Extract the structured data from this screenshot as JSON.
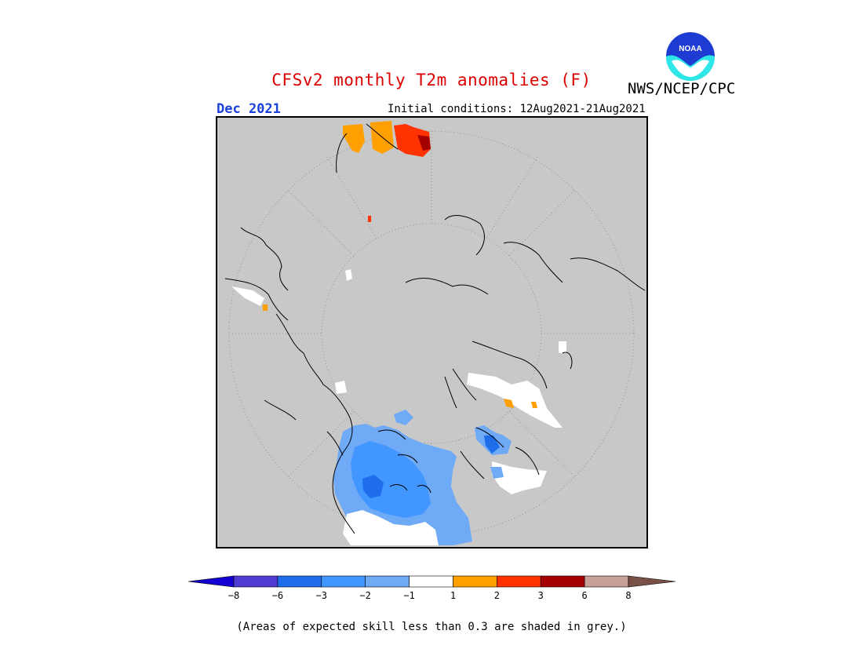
{
  "header": {
    "title": "CFSv2 monthly T2m anomalies (F)",
    "title_color": "#dd0000",
    "agency": "NWS/NCEP/CPC",
    "logo_text": "NOAA",
    "month": "Dec 2021",
    "month_color": "#1a3fdb",
    "initial_conditions": "Initial conditions: 12Aug2021-21Aug2021"
  },
  "map": {
    "projection": "north-polar-stereographic",
    "background_color": "#c8c8c8",
    "skill_mask_color": "#c8c8c8",
    "anomaly_regions": [
      {
        "region": "North America interior (Canada / northern US)",
        "category": "-3 to -2",
        "color": "#4196ff"
      },
      {
        "region": "North America interior (Canada / northern US)",
        "category": "-2 to -1",
        "color": "#6eaaf5"
      },
      {
        "region": "Central Canada core",
        "category": "-6 to -3",
        "color": "#1e6eeb"
      },
      {
        "region": "Southern Canada / northern US border",
        "category": "-1 to 1",
        "color": "#ffffff"
      },
      {
        "region": "Eastern Greenland / Baffin",
        "category": "-3 to -2",
        "color": "#4196ff"
      },
      {
        "region": "Scandinavia / Northern Europe",
        "category": "-1 to 1",
        "color": "#ffffff"
      },
      {
        "region": "Scandinavia coast",
        "category": "1 to 2",
        "color": "#ffa000"
      },
      {
        "region": "Southeast Asia (map top)",
        "category": "1 to 2",
        "color": "#ffa000"
      },
      {
        "region": "Southeast Asia (map top)",
        "category": "2 to 3",
        "color": "#ff3200"
      },
      {
        "region": "Southeast Asia (map top)",
        "category": "3 to 6",
        "color": "#a50000"
      },
      {
        "region": "East Asia / Japan",
        "category": "-1 to 1",
        "color": "#ffffff"
      }
    ]
  },
  "colorbar": {
    "tick_labels": [
      "−8",
      "−6",
      "−3",
      "−2",
      "−1",
      "1",
      "2",
      "3",
      "6",
      "8"
    ],
    "colors": [
      "#1400d2",
      "#503cd2",
      "#1e6eeb",
      "#4196ff",
      "#6eaaf5",
      "#ffffff",
      "#ffa000",
      "#ff3200",
      "#a50000",
      "#c8a096",
      "#785046"
    ]
  },
  "footnote": "(Areas of expected skill less than 0.3 are shaded in grey.)"
}
